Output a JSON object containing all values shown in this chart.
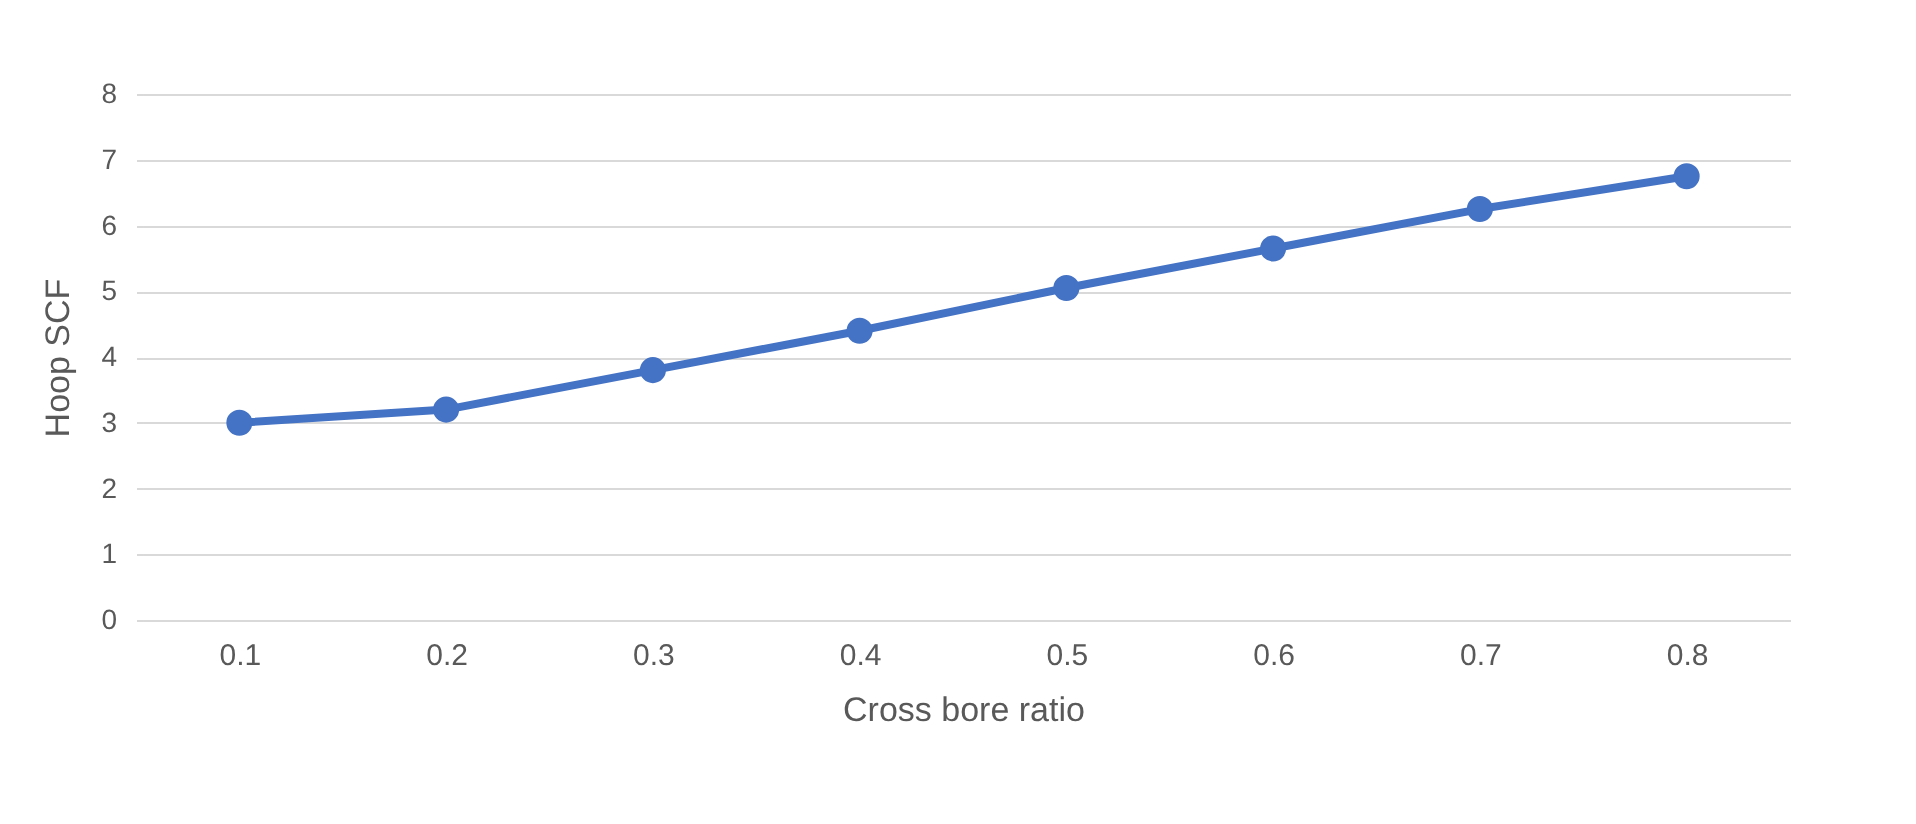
{
  "chart_data": {
    "type": "line",
    "xlabel": "Cross bore ratio",
    "ylabel": "Hoop SCF",
    "categories": [
      "0.1",
      "0.2",
      "0.3",
      "0.4",
      "0.5",
      "0.6",
      "0.7",
      "0.8"
    ],
    "series": [
      {
        "color": "#4472c4",
        "values": [
          3.0,
          3.2,
          3.8,
          4.4,
          5.05,
          5.65,
          6.25,
          6.75
        ]
      }
    ],
    "ylim": [
      0,
      8
    ],
    "yticks": [
      0,
      1,
      2,
      3,
      4,
      5,
      6,
      7,
      8
    ],
    "grid": "y",
    "marker": "circle",
    "line_style": "solid",
    "legend": false
  }
}
